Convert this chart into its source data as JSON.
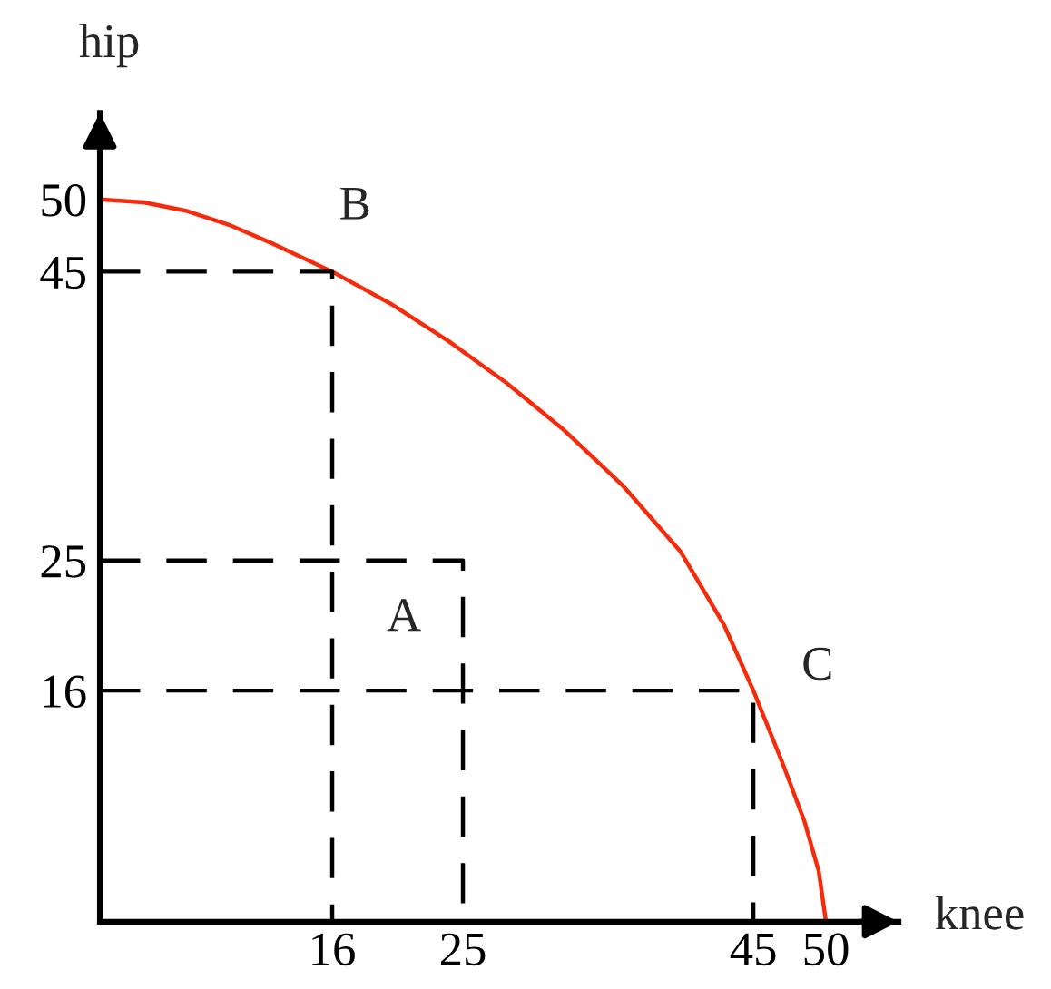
{
  "chart_data": {
    "type": "line",
    "xlabel": "knee",
    "ylabel": "hip",
    "xlim": [
      0,
      55
    ],
    "ylim": [
      0,
      56
    ],
    "xticks": [
      16,
      25,
      45,
      50
    ],
    "yticks": [
      16,
      25,
      45,
      50
    ],
    "grid": false,
    "series": [
      {
        "x": [
          0,
          3,
          6,
          9,
          12,
          16,
          20,
          24,
          28,
          32,
          36,
          40,
          43,
          45,
          47,
          48.5,
          49.5,
          50
        ],
        "values": [
          50,
          49.8,
          49.2,
          48.2,
          46.9,
          45,
          42.8,
          40.2,
          37.3,
          34,
          30.2,
          25.6,
          20.5,
          16,
          11,
          7,
          3.5,
          0
        ],
        "color": "#f52b0c",
        "line_style": "solid"
      },
      {
        "x": [
          0,
          16,
          16
        ],
        "values": [
          45,
          45,
          0
        ],
        "color": "#000000",
        "line_style": "dashed"
      },
      {
        "x": [
          0,
          25,
          25
        ],
        "values": [
          25,
          25,
          0
        ],
        "color": "#000000",
        "line_style": "dashed"
      },
      {
        "x": [
          0,
          45,
          45
        ],
        "values": [
          16,
          16,
          0
        ],
        "color": "#000000",
        "line_style": "dashed"
      }
    ],
    "annotations": [
      {
        "text": "B",
        "x": 16,
        "y": 45
      },
      {
        "text": "A",
        "x": 25,
        "y": 25
      },
      {
        "text": "C",
        "x": 45,
        "y": 16
      }
    ]
  }
}
